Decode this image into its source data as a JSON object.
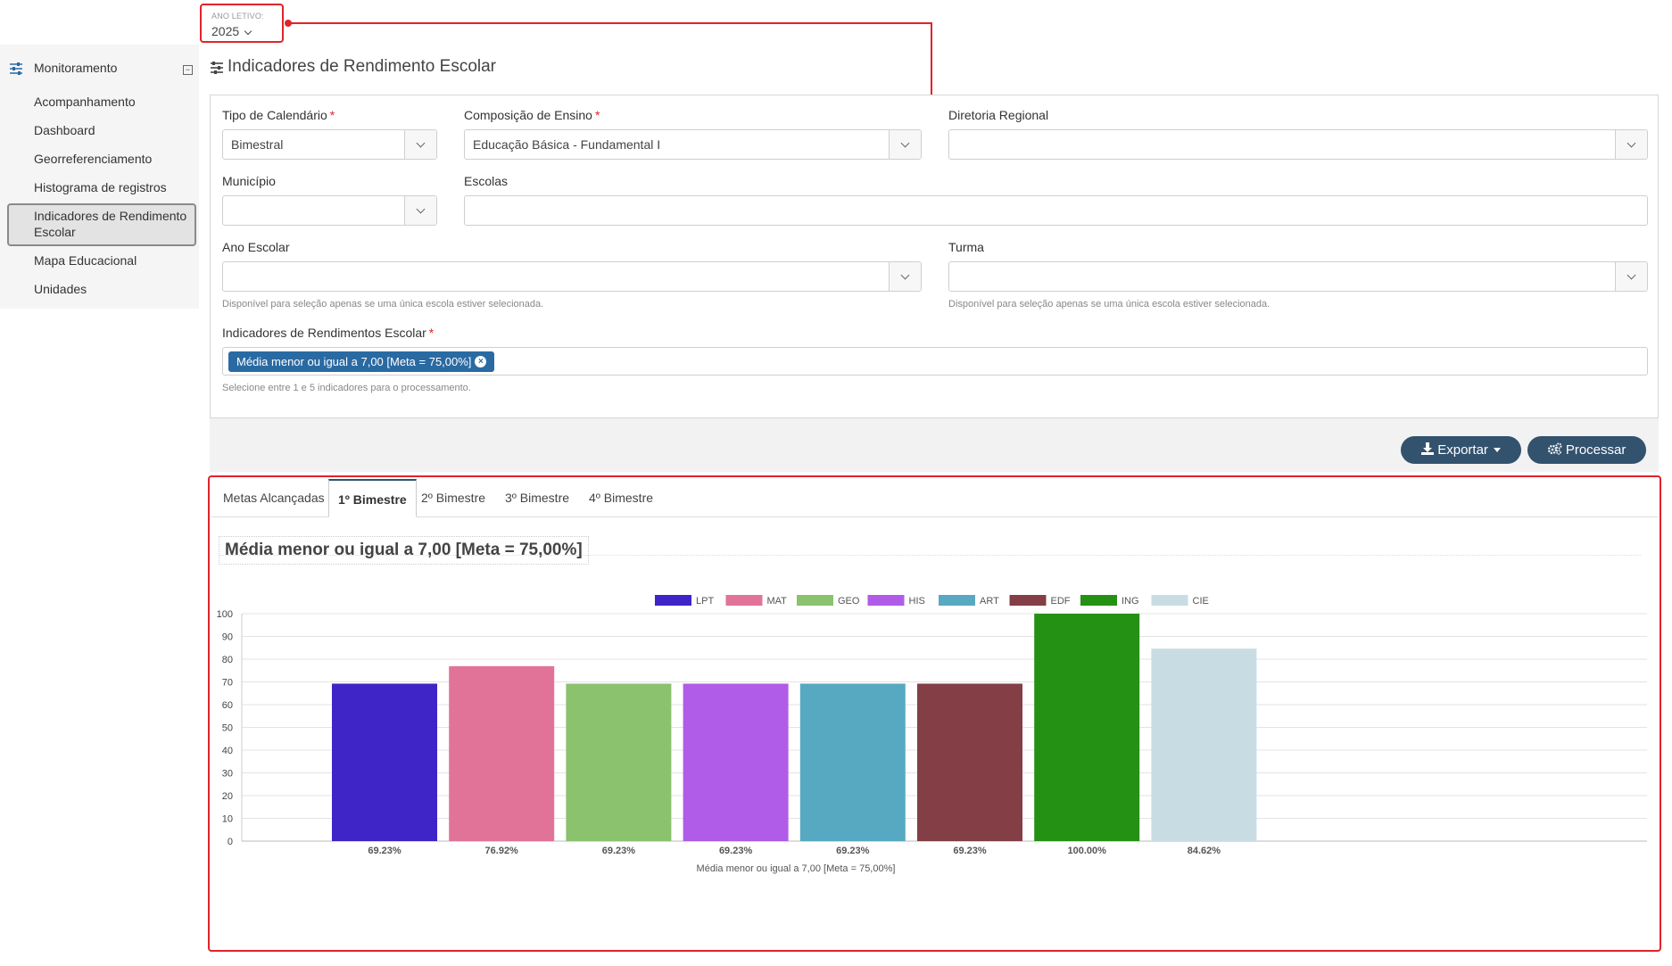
{
  "year": {
    "label": "ANO LETIVO:",
    "value": "2025"
  },
  "sidebar": {
    "title": "Monitoramento",
    "collapse_symbol": "⊟",
    "items": [
      {
        "label": "Acompanhamento"
      },
      {
        "label": "Dashboard"
      },
      {
        "label": "Georreferenciamento"
      },
      {
        "label": "Histograma de registros"
      },
      {
        "label": "Indicadores de Rendimento Escolar",
        "active": true
      },
      {
        "label": "Mapa Educacional"
      },
      {
        "label": "Unidades"
      }
    ]
  },
  "page": {
    "title": "Indicadores de Rendimento Escolar"
  },
  "filters": {
    "tipo_calendario": {
      "label": "Tipo de Calendário",
      "value": "Bimestral"
    },
    "composicao": {
      "label": "Composição de Ensino",
      "value": "Educação Básica - Fundamental I"
    },
    "diretoria": {
      "label": "Diretoria Regional",
      "value": ""
    },
    "municipio": {
      "label": "Município",
      "value": ""
    },
    "escolas": {
      "label": "Escolas",
      "value": ""
    },
    "ano_escolar": {
      "label": "Ano Escolar",
      "value": "",
      "help": "Disponível para seleção apenas se uma única escola estiver selecionada."
    },
    "turma": {
      "label": "Turma",
      "value": "",
      "help": "Disponível para seleção apenas se uma única escola estiver selecionada."
    },
    "indicadores": {
      "label": "Indicadores de Rendimentos Escolar",
      "tags": [
        "Média menor ou igual a 7,00 [Meta = 75,00%]"
      ],
      "help": "Selecione entre 1 e 5 indicadores para o processamento."
    },
    "required_mark": "*"
  },
  "actions": {
    "export_label": "Exportar",
    "process_label": "Processar"
  },
  "tabs": [
    {
      "label": "Metas Alcançadas",
      "active": false
    },
    {
      "label": "1º Bimestre",
      "active": true
    },
    {
      "label": "2º Bimestre",
      "active": false
    },
    {
      "label": "3º Bimestre",
      "active": false
    },
    {
      "label": "4º Bimestre",
      "active": false
    }
  ],
  "chart_data": {
    "type": "bar",
    "title": "Média menor ou igual a 7,00 [Meta = 75,00%]",
    "xlabel": "Média menor ou igual a 7,00 [Meta = 75,00%]",
    "ylabel": "",
    "ylim": [
      0,
      100
    ],
    "yticks": [
      0,
      10,
      20,
      30,
      40,
      50,
      60,
      70,
      80,
      90,
      100
    ],
    "grid": true,
    "legend_position": "top-center",
    "series": [
      {
        "name": "LPT",
        "value": 69.23,
        "label": "69.23%",
        "color": "#3f24c7"
      },
      {
        "name": "MAT",
        "value": 76.92,
        "label": "76.92%",
        "color": "#e27398"
      },
      {
        "name": "GEO",
        "value": 69.23,
        "label": "69.23%",
        "color": "#8ac26e"
      },
      {
        "name": "HIS",
        "value": 69.23,
        "label": "69.23%",
        "color": "#b05ce8"
      },
      {
        "name": "ART",
        "value": 69.23,
        "label": "69.23%",
        "color": "#57a9c2"
      },
      {
        "name": "EDF",
        "value": 69.23,
        "label": "69.23%",
        "color": "#833f45"
      },
      {
        "name": "ING",
        "value": 100.0,
        "label": "100.00%",
        "color": "#249114"
      },
      {
        "name": "CIE",
        "value": 84.62,
        "label": "84.62%",
        "color": "#c8dde3"
      }
    ]
  },
  "colors": {
    "accent": "#33526e",
    "highlight": "#e0232a",
    "tag": "#2a6aa3"
  }
}
